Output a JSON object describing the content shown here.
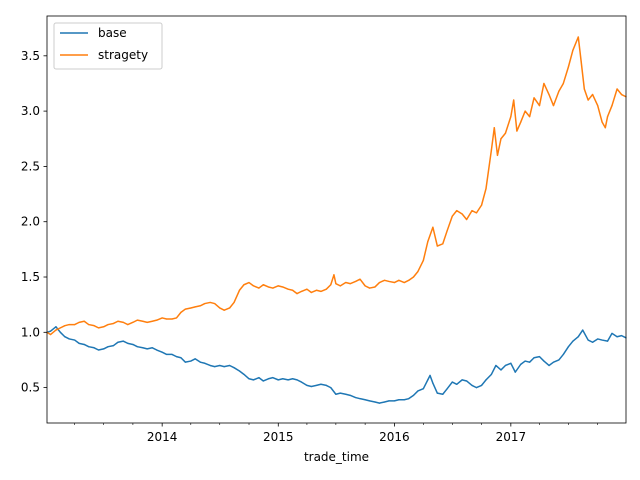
{
  "chart_data": {
    "type": "line",
    "title": "",
    "xlabel": "trade_time",
    "ylabel": "",
    "xlim": [
      "2013-01-04",
      "2017-12-29"
    ],
    "ylim": [
      0.18,
      3.86
    ],
    "x_ticks": [
      {
        "date": "2014-01-01",
        "label": "2014"
      },
      {
        "date": "2015-01-01",
        "label": "2015"
      },
      {
        "date": "2016-01-01",
        "label": "2016"
      },
      {
        "date": "2017-01-01",
        "label": "2017"
      }
    ],
    "x_minor_ticks": [
      "2013-04-01",
      "2013-07-01",
      "2013-10-01",
      "2014-04-01",
      "2014-07-01",
      "2014-10-01",
      "2015-04-01",
      "2015-07-01",
      "2015-10-01",
      "2016-04-01",
      "2016-07-01",
      "2016-10-01",
      "2017-04-01",
      "2017-07-01",
      "2017-10-01"
    ],
    "y_ticks": [
      0.5,
      1.0,
      1.5,
      2.0,
      2.5,
      3.0,
      3.5
    ],
    "y_tick_labels": [
      "0.5",
      "1.0",
      "1.5",
      "2.0",
      "2.5",
      "3.0",
      "3.5"
    ],
    "grid": false,
    "legend": "top-left",
    "series": [
      {
        "name": "base",
        "color": "#1f77b4",
        "points": [
          [
            "2013-01-04",
            1.0
          ],
          [
            "2013-01-15",
            1.01
          ],
          [
            "2013-02-01",
            1.05
          ],
          [
            "2013-02-15",
            1.0
          ],
          [
            "2013-03-01",
            0.96
          ],
          [
            "2013-03-15",
            0.94
          ],
          [
            "2013-04-01",
            0.93
          ],
          [
            "2013-04-15",
            0.9
          ],
          [
            "2013-05-01",
            0.89
          ],
          [
            "2013-05-15",
            0.87
          ],
          [
            "2013-06-01",
            0.86
          ],
          [
            "2013-06-15",
            0.84
          ],
          [
            "2013-07-01",
            0.85
          ],
          [
            "2013-07-15",
            0.87
          ],
          [
            "2013-08-01",
            0.88
          ],
          [
            "2013-08-15",
            0.91
          ],
          [
            "2013-09-01",
            0.92
          ],
          [
            "2013-09-15",
            0.9
          ],
          [
            "2013-10-01",
            0.89
          ],
          [
            "2013-10-15",
            0.87
          ],
          [
            "2013-11-01",
            0.86
          ],
          [
            "2013-11-15",
            0.85
          ],
          [
            "2013-12-01",
            0.86
          ],
          [
            "2013-12-15",
            0.84
          ],
          [
            "2014-01-01",
            0.82
          ],
          [
            "2014-01-15",
            0.8
          ],
          [
            "2014-02-01",
            0.8
          ],
          [
            "2014-02-15",
            0.78
          ],
          [
            "2014-03-01",
            0.77
          ],
          [
            "2014-03-15",
            0.73
          ],
          [
            "2014-04-01",
            0.74
          ],
          [
            "2014-04-15",
            0.76
          ],
          [
            "2014-05-01",
            0.73
          ],
          [
            "2014-05-15",
            0.72
          ],
          [
            "2014-06-01",
            0.7
          ],
          [
            "2014-06-15",
            0.69
          ],
          [
            "2014-07-01",
            0.7
          ],
          [
            "2014-07-15",
            0.69
          ],
          [
            "2014-08-01",
            0.7
          ],
          [
            "2014-08-15",
            0.68
          ],
          [
            "2014-09-01",
            0.65
          ],
          [
            "2014-09-15",
            0.62
          ],
          [
            "2014-10-01",
            0.58
          ],
          [
            "2014-10-15",
            0.57
          ],
          [
            "2014-11-01",
            0.59
          ],
          [
            "2014-11-15",
            0.56
          ],
          [
            "2014-12-01",
            0.58
          ],
          [
            "2014-12-15",
            0.59
          ],
          [
            "2015-01-01",
            0.57
          ],
          [
            "2015-01-15",
            0.58
          ],
          [
            "2015-02-01",
            0.57
          ],
          [
            "2015-02-15",
            0.58
          ],
          [
            "2015-03-01",
            0.57
          ],
          [
            "2015-03-15",
            0.55
          ],
          [
            "2015-04-01",
            0.52
          ],
          [
            "2015-04-15",
            0.51
          ],
          [
            "2015-05-01",
            0.52
          ],
          [
            "2015-05-15",
            0.53
          ],
          [
            "2015-06-01",
            0.52
          ],
          [
            "2015-06-15",
            0.5
          ],
          [
            "2015-07-01",
            0.44
          ],
          [
            "2015-07-15",
            0.45
          ],
          [
            "2015-08-01",
            0.44
          ],
          [
            "2015-08-15",
            0.43
          ],
          [
            "2015-09-01",
            0.41
          ],
          [
            "2015-09-15",
            0.4
          ],
          [
            "2015-10-01",
            0.39
          ],
          [
            "2015-10-15",
            0.38
          ],
          [
            "2015-11-01",
            0.37
          ],
          [
            "2015-11-15",
            0.36
          ],
          [
            "2015-12-01",
            0.37
          ],
          [
            "2015-12-15",
            0.38
          ],
          [
            "2016-01-01",
            0.38
          ],
          [
            "2016-01-15",
            0.39
          ],
          [
            "2016-02-01",
            0.39
          ],
          [
            "2016-02-15",
            0.4
          ],
          [
            "2016-03-01",
            0.43
          ],
          [
            "2016-03-15",
            0.47
          ],
          [
            "2016-04-01",
            0.49
          ],
          [
            "2016-04-15",
            0.57
          ],
          [
            "2016-04-22",
            0.61
          ],
          [
            "2016-05-01",
            0.54
          ],
          [
            "2016-05-15",
            0.45
          ],
          [
            "2016-06-01",
            0.44
          ],
          [
            "2016-06-15",
            0.49
          ],
          [
            "2016-07-01",
            0.55
          ],
          [
            "2016-07-15",
            0.53
          ],
          [
            "2016-08-01",
            0.57
          ],
          [
            "2016-08-15",
            0.56
          ],
          [
            "2016-09-01",
            0.52
          ],
          [
            "2016-09-15",
            0.5
          ],
          [
            "2016-10-01",
            0.52
          ],
          [
            "2016-10-15",
            0.57
          ],
          [
            "2016-11-01",
            0.62
          ],
          [
            "2016-11-15",
            0.7
          ],
          [
            "2016-12-01",
            0.66
          ],
          [
            "2016-12-15",
            0.7
          ],
          [
            "2017-01-01",
            0.72
          ],
          [
            "2017-01-15",
            0.64
          ],
          [
            "2017-02-01",
            0.71
          ],
          [
            "2017-02-15",
            0.74
          ],
          [
            "2017-03-01",
            0.73
          ],
          [
            "2017-03-15",
            0.77
          ],
          [
            "2017-04-01",
            0.78
          ],
          [
            "2017-04-15",
            0.74
          ],
          [
            "2017-05-01",
            0.7
          ],
          [
            "2017-05-15",
            0.73
          ],
          [
            "2017-06-01",
            0.75
          ],
          [
            "2017-06-15",
            0.8
          ],
          [
            "2017-07-01",
            0.87
          ],
          [
            "2017-07-15",
            0.92
          ],
          [
            "2017-08-01",
            0.96
          ],
          [
            "2017-08-15",
            1.02
          ],
          [
            "2017-09-01",
            0.93
          ],
          [
            "2017-09-15",
            0.91
          ],
          [
            "2017-10-01",
            0.94
          ],
          [
            "2017-10-15",
            0.93
          ],
          [
            "2017-11-01",
            0.92
          ],
          [
            "2017-11-15",
            0.99
          ],
          [
            "2017-12-01",
            0.96
          ],
          [
            "2017-12-15",
            0.97
          ],
          [
            "2017-12-29",
            0.95
          ]
        ]
      },
      {
        "name": "stragety",
        "color": "#ff7f0e",
        "points": [
          [
            "2013-01-04",
            1.0
          ],
          [
            "2013-01-15",
            0.98
          ],
          [
            "2013-02-01",
            1.02
          ],
          [
            "2013-02-15",
            1.04
          ],
          [
            "2013-03-01",
            1.06
          ],
          [
            "2013-03-15",
            1.07
          ],
          [
            "2013-04-01",
            1.07
          ],
          [
            "2013-04-15",
            1.09
          ],
          [
            "2013-05-01",
            1.1
          ],
          [
            "2013-05-15",
            1.07
          ],
          [
            "2013-06-01",
            1.06
          ],
          [
            "2013-06-15",
            1.04
          ],
          [
            "2013-07-01",
            1.05
          ],
          [
            "2013-07-15",
            1.07
          ],
          [
            "2013-08-01",
            1.08
          ],
          [
            "2013-08-15",
            1.1
          ],
          [
            "2013-09-01",
            1.09
          ],
          [
            "2013-09-15",
            1.07
          ],
          [
            "2013-10-01",
            1.09
          ],
          [
            "2013-10-15",
            1.11
          ],
          [
            "2013-11-01",
            1.1
          ],
          [
            "2013-11-15",
            1.09
          ],
          [
            "2013-12-01",
            1.1
          ],
          [
            "2013-12-15",
            1.11
          ],
          [
            "2014-01-01",
            1.13
          ],
          [
            "2014-01-15",
            1.12
          ],
          [
            "2014-02-01",
            1.12
          ],
          [
            "2014-02-15",
            1.13
          ],
          [
            "2014-03-01",
            1.18
          ],
          [
            "2014-03-15",
            1.21
          ],
          [
            "2014-04-01",
            1.22
          ],
          [
            "2014-04-15",
            1.23
          ],
          [
            "2014-05-01",
            1.24
          ],
          [
            "2014-05-15",
            1.26
          ],
          [
            "2014-06-01",
            1.27
          ],
          [
            "2014-06-15",
            1.26
          ],
          [
            "2014-07-01",
            1.22
          ],
          [
            "2014-07-15",
            1.2
          ],
          [
            "2014-08-01",
            1.22
          ],
          [
            "2014-08-15",
            1.27
          ],
          [
            "2014-09-01",
            1.38
          ],
          [
            "2014-09-15",
            1.43
          ],
          [
            "2014-10-01",
            1.45
          ],
          [
            "2014-10-15",
            1.42
          ],
          [
            "2014-11-01",
            1.4
          ],
          [
            "2014-11-15",
            1.43
          ],
          [
            "2014-12-01",
            1.41
          ],
          [
            "2014-12-15",
            1.4
          ],
          [
            "2015-01-01",
            1.42
          ],
          [
            "2015-01-15",
            1.41
          ],
          [
            "2015-02-01",
            1.39
          ],
          [
            "2015-02-15",
            1.38
          ],
          [
            "2015-03-01",
            1.35
          ],
          [
            "2015-03-15",
            1.37
          ],
          [
            "2015-04-01",
            1.39
          ],
          [
            "2015-04-15",
            1.36
          ],
          [
            "2015-05-01",
            1.38
          ],
          [
            "2015-05-15",
            1.37
          ],
          [
            "2015-06-01",
            1.39
          ],
          [
            "2015-06-15",
            1.43
          ],
          [
            "2015-06-25",
            1.52
          ],
          [
            "2015-07-01",
            1.44
          ],
          [
            "2015-07-15",
            1.42
          ],
          [
            "2015-08-01",
            1.45
          ],
          [
            "2015-08-15",
            1.44
          ],
          [
            "2015-09-01",
            1.46
          ],
          [
            "2015-09-15",
            1.48
          ],
          [
            "2015-10-01",
            1.42
          ],
          [
            "2015-10-15",
            1.4
          ],
          [
            "2015-11-01",
            1.41
          ],
          [
            "2015-11-15",
            1.45
          ],
          [
            "2015-12-01",
            1.47
          ],
          [
            "2015-12-15",
            1.46
          ],
          [
            "2016-01-01",
            1.45
          ],
          [
            "2016-01-15",
            1.47
          ],
          [
            "2016-02-01",
            1.45
          ],
          [
            "2016-02-15",
            1.47
          ],
          [
            "2016-03-01",
            1.5
          ],
          [
            "2016-03-15",
            1.55
          ],
          [
            "2016-04-01",
            1.65
          ],
          [
            "2016-04-15",
            1.82
          ],
          [
            "2016-05-01",
            1.95
          ],
          [
            "2016-05-15",
            1.78
          ],
          [
            "2016-06-01",
            1.8
          ],
          [
            "2016-06-15",
            1.92
          ],
          [
            "2016-07-01",
            2.05
          ],
          [
            "2016-07-15",
            2.1
          ],
          [
            "2016-08-01",
            2.07
          ],
          [
            "2016-08-15",
            2.02
          ],
          [
            "2016-09-01",
            2.1
          ],
          [
            "2016-09-15",
            2.08
          ],
          [
            "2016-10-01",
            2.15
          ],
          [
            "2016-10-15",
            2.3
          ],
          [
            "2016-11-01",
            2.65
          ],
          [
            "2016-11-10",
            2.85
          ],
          [
            "2016-11-20",
            2.6
          ],
          [
            "2016-12-01",
            2.75
          ],
          [
            "2016-12-15",
            2.8
          ],
          [
            "2017-01-01",
            2.95
          ],
          [
            "2017-01-10",
            3.1
          ],
          [
            "2017-01-20",
            2.82
          ],
          [
            "2017-02-01",
            2.9
          ],
          [
            "2017-02-15",
            3.0
          ],
          [
            "2017-03-01",
            2.95
          ],
          [
            "2017-03-15",
            3.12
          ],
          [
            "2017-04-01",
            3.05
          ],
          [
            "2017-04-15",
            3.25
          ],
          [
            "2017-05-01",
            3.15
          ],
          [
            "2017-05-15",
            3.05
          ],
          [
            "2017-06-01",
            3.18
          ],
          [
            "2017-06-15",
            3.25
          ],
          [
            "2017-07-01",
            3.4
          ],
          [
            "2017-07-15",
            3.55
          ],
          [
            "2017-08-01",
            3.67
          ],
          [
            "2017-08-10",
            3.45
          ],
          [
            "2017-08-20",
            3.2
          ],
          [
            "2017-09-01",
            3.1
          ],
          [
            "2017-09-15",
            3.15
          ],
          [
            "2017-10-01",
            3.05
          ],
          [
            "2017-10-15",
            2.9
          ],
          [
            "2017-10-25",
            2.85
          ],
          [
            "2017-11-01",
            2.95
          ],
          [
            "2017-11-15",
            3.05
          ],
          [
            "2017-12-01",
            3.2
          ],
          [
            "2017-12-15",
            3.15
          ],
          [
            "2017-12-29",
            3.13
          ]
        ]
      }
    ]
  }
}
